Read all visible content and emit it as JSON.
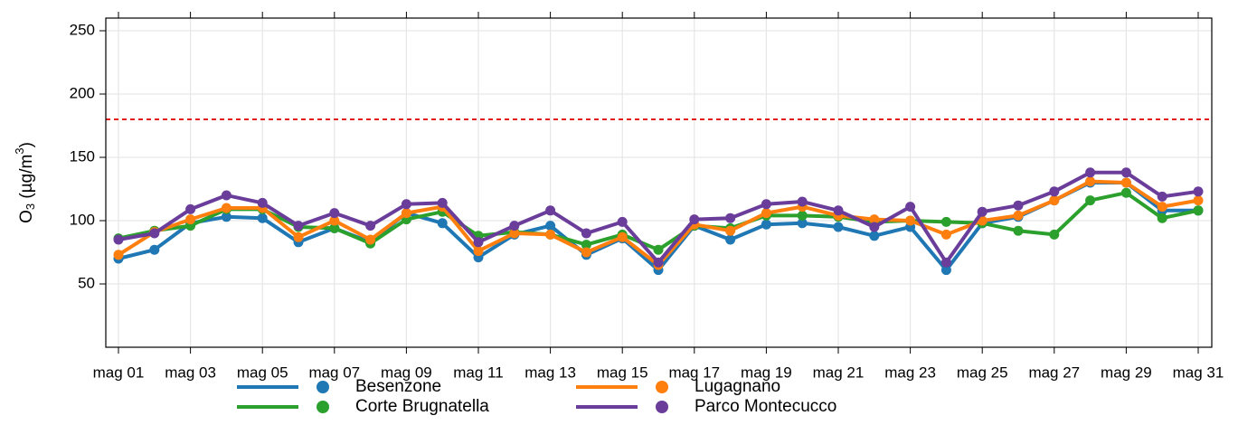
{
  "chart_data": {
    "type": "line",
    "ylabel": {
      "base": "O",
      "sub": "3",
      "mid": " (µg/m",
      "sup": "3",
      "end": ")"
    },
    "categories": [
      "mag 01",
      null,
      "mag 03",
      null,
      "mag 05",
      null,
      "mag 07",
      null,
      "mag 09",
      null,
      "mag 11",
      null,
      "mag 13",
      null,
      "mag 15",
      null,
      "mag 17",
      null,
      "mag 19",
      null,
      "mag 21",
      null,
      "mag 23",
      null,
      "mag 25",
      null,
      "mag 27",
      null,
      "mag 29",
      null,
      "mag 31"
    ],
    "series": [
      {
        "name": "Besenzone",
        "color": "#1f77b4",
        "values": [
          70,
          77,
          98,
          103,
          102,
          83,
          94,
          83,
          106,
          98,
          71,
          89,
          96,
          73,
          86,
          61,
          96,
          85,
          97,
          98,
          95,
          88,
          95,
          61,
          98,
          103,
          116,
          130,
          130,
          108,
          108
        ]
      },
      {
        "name": "Corte Brugnatella",
        "color": "#2ca02c",
        "values": [
          86,
          92,
          96,
          109,
          109,
          95,
          94,
          82,
          101,
          107,
          88,
          91,
          89,
          81,
          89,
          77,
          96,
          94,
          104,
          104,
          103,
          99,
          100,
          99,
          98,
          92,
          89,
          116,
          122,
          102,
          108
        ]
      },
      {
        "name": "Lugagnano",
        "color": "#ff7f0e",
        "values": [
          73,
          91,
          101,
          110,
          110,
          87,
          100,
          85,
          106,
          111,
          76,
          90,
          89,
          75,
          87,
          65,
          97,
          92,
          106,
          111,
          104,
          101,
          100,
          89,
          100,
          104,
          116,
          131,
          130,
          111,
          116
        ]
      },
      {
        "name": "Parco Montecucco",
        "color": "#6a3d9a",
        "values": [
          85,
          90,
          109,
          120,
          114,
          96,
          106,
          96,
          113,
          114,
          83,
          96,
          108,
          90,
          99,
          67,
          101,
          102,
          113,
          115,
          108,
          95,
          111,
          67,
          107,
          112,
          123,
          138,
          138,
          119,
          123
        ]
      }
    ],
    "ylim": [
      0,
      260
    ],
    "yticks": [
      50,
      100,
      150,
      200,
      250
    ],
    "grid": true,
    "threshold": 180,
    "threshold_color": "#e31a1c",
    "legend": "bottom"
  }
}
